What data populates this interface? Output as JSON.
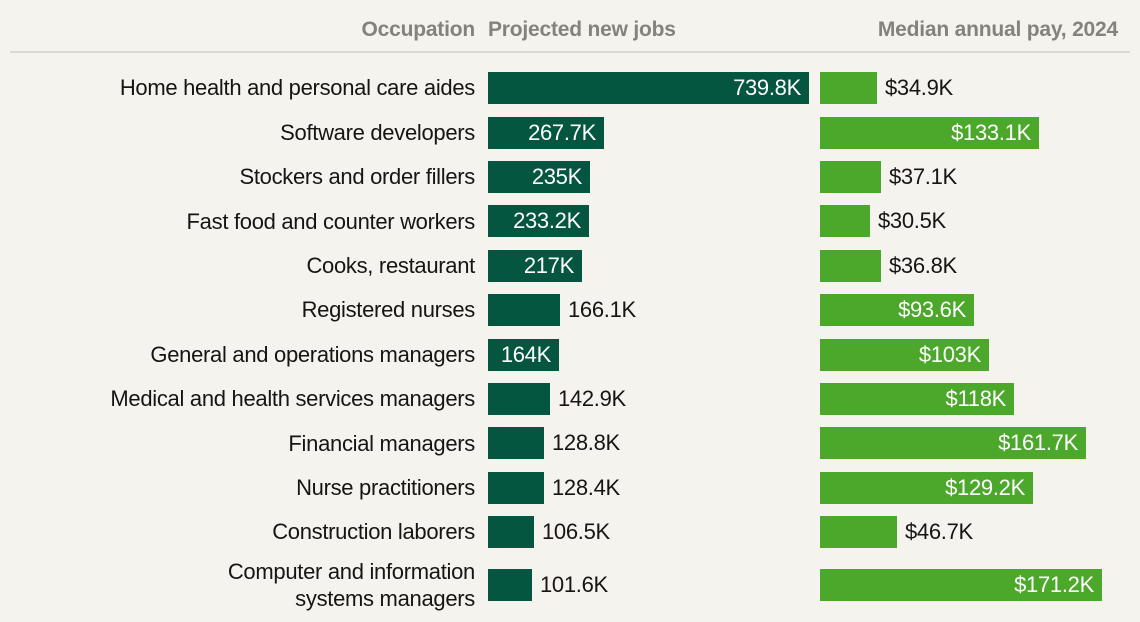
{
  "header": {
    "occupation": "Occupation",
    "jobs": "Projected new jobs",
    "pay": "Median annual pay, 2024"
  },
  "colors": {
    "background": "#f4f3ed",
    "jobs_bar": "#045640",
    "pay_bar": "#4ca82b",
    "header_text": "#85827c",
    "label_text": "#161514",
    "divider": "#dbd9d1"
  },
  "chart_data": {
    "type": "bar",
    "orientation": "horizontal",
    "legend": "none",
    "axes": "hidden",
    "value_labels": "on bars (white inside bar when it fits, black outside otherwise)",
    "categories": [
      "Home health and personal care aides",
      "Software developers",
      "Stockers and order fillers",
      "Fast food and counter workers",
      "Cooks, restaurant",
      "Registered nurses",
      "General and operations managers",
      "Medical and health services managers",
      "Financial managers",
      "Nurse practitioners",
      "Construction laborers",
      "Computer and information\nsystems managers"
    ],
    "series": [
      {
        "name": "Projected new jobs",
        "unit": "thousands of jobs",
        "values": [
          739.8,
          267.7,
          235,
          233.2,
          217,
          166.1,
          164,
          142.9,
          128.8,
          128.4,
          106.5,
          101.6
        ],
        "labels": [
          "739.8K",
          "267.7K",
          "235K",
          "233.2K",
          "217K",
          "166.1K",
          "164K",
          "142.9K",
          "128.8K",
          "128.4K",
          "106.5K",
          "101.6K"
        ],
        "label_positions": [
          "inside",
          "inside",
          "inside",
          "inside",
          "inside",
          "outside",
          "inside",
          "outside",
          "outside",
          "outside",
          "outside",
          "outside"
        ]
      },
      {
        "name": "Median annual pay, 2024",
        "unit": "thousands of US dollars",
        "values": [
          34.9,
          133.1,
          37.1,
          30.5,
          36.8,
          93.6,
          103,
          118,
          161.7,
          129.2,
          46.7,
          171.2
        ],
        "labels": [
          "$34.9K",
          "$133.1K",
          "$37.1K",
          "$30.5K",
          "$36.8K",
          "$93.6K",
          "$103K",
          "$118K",
          "$161.7K",
          "$129.2K",
          "$46.7K",
          "$171.2K"
        ],
        "label_positions": [
          "outside",
          "inside",
          "outside",
          "outside",
          "outside",
          "inside",
          "inside",
          "inside",
          "inside",
          "inside",
          "outside",
          "inside"
        ]
      }
    ]
  }
}
